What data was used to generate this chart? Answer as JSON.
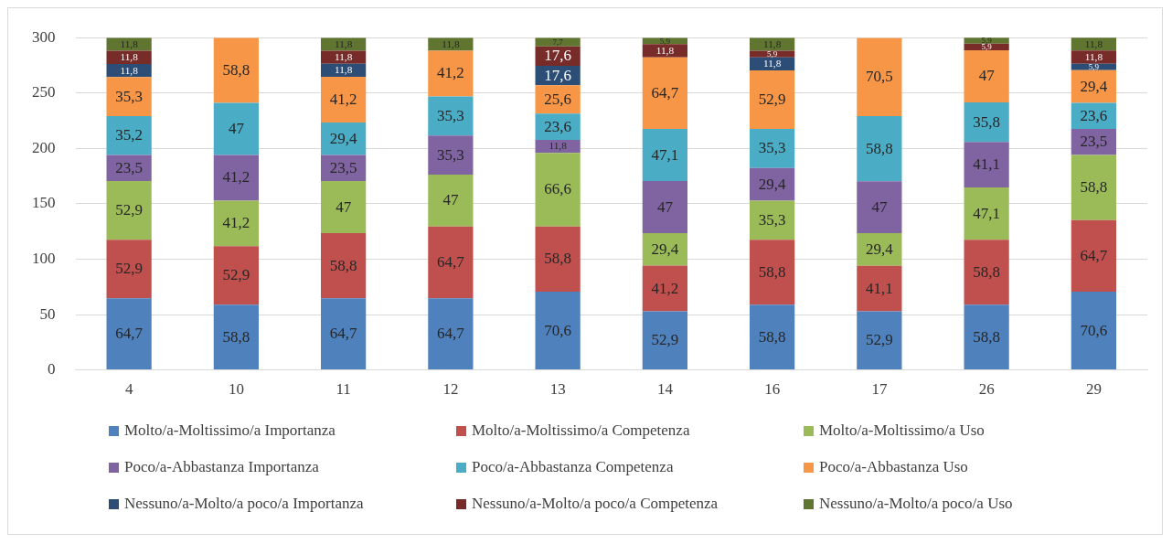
{
  "chart_data": {
    "type": "bar",
    "stacked": true,
    "categories": [
      "4",
      "10",
      "11",
      "12",
      "13",
      "14",
      "16",
      "17",
      "26",
      "29"
    ],
    "series": [
      {
        "name": "Molto/a-Moltissimo/a Importanza",
        "color": "#4f81bd",
        "values": [
          64.7,
          58.8,
          64.7,
          64.7,
          70.6,
          52.9,
          58.8,
          52.9,
          58.8,
          70.6
        ],
        "value_labels": [
          "64,7",
          "58,8",
          "64,7",
          "64,7",
          "70,6",
          "52,9",
          "58,8",
          "52,9",
          "58,8",
          "70,6"
        ]
      },
      {
        "name": "Molto/a-Moltissimo/a Competenza",
        "color": "#c0504d",
        "values": [
          52.9,
          52.9,
          58.8,
          64.7,
          58.8,
          41.2,
          58.8,
          41.1,
          58.8,
          64.7
        ],
        "value_labels": [
          "52,9",
          "52,9",
          "58,8",
          "64,7",
          "58,8",
          "41,2",
          "58,8",
          "41,1",
          "58,8",
          "64,7"
        ]
      },
      {
        "name": "Molto/a-Moltissimo/a Uso",
        "color": "#9bbb59",
        "values": [
          52.9,
          41.2,
          47,
          47,
          66.6,
          29.4,
          35.3,
          29.4,
          47.1,
          58.8
        ],
        "value_labels": [
          "52,9",
          "41,2",
          "47",
          "47",
          "66,6",
          "29,4",
          "35,3",
          "29,4",
          "47,1",
          "58,8"
        ]
      },
      {
        "name": "Poco/a-Abbastanza Importanza",
        "color": "#8064a2",
        "values": [
          23.5,
          41.2,
          23.5,
          35.3,
          11.8,
          47,
          29.4,
          47,
          41.1,
          23.5
        ],
        "value_labels": [
          "23,5",
          "41,2",
          "23,5",
          "35,3",
          "11,8",
          "47",
          "29,4",
          "47",
          "41,1",
          "23,5"
        ]
      },
      {
        "name": "Poco/a-Abbastanza Competenza",
        "color": "#4bacc6",
        "values": [
          35.2,
          47,
          29.4,
          35.3,
          23.6,
          47.1,
          35.3,
          58.8,
          35.8,
          23.6
        ],
        "value_labels": [
          "35,2",
          "47",
          "29,4",
          "35,3",
          "23,6",
          "47,1",
          "35,3",
          "58,8",
          "35,8",
          "23,6"
        ]
      },
      {
        "name": "Poco/a-Abbastanza Uso",
        "color": "#f79646",
        "values": [
          35.3,
          58.8,
          41.2,
          41.2,
          25.6,
          64.7,
          52.9,
          70.5,
          47,
          29.4
        ],
        "value_labels": [
          "35,3",
          "58,8",
          "41,2",
          "41,2",
          "25,6",
          "64,7",
          "52,9",
          "70,5",
          "47",
          "29,4"
        ]
      },
      {
        "name": "Nessuno/a-Molto/a poco/a Importanza",
        "color": "#2c4d75",
        "values": [
          11.8,
          null,
          11.8,
          null,
          17.6,
          null,
          11.8,
          null,
          null,
          5.9
        ],
        "value_labels": [
          "11,8",
          null,
          "11,8",
          null,
          "17,6",
          null,
          "11,8",
          null,
          null,
          "5,9"
        ]
      },
      {
        "name": "Nessuno/a-Molto/a poco/a Competenza",
        "color": "#772c2a",
        "values": [
          11.8,
          null,
          11.8,
          null,
          17.6,
          11.8,
          5.9,
          null,
          5.9,
          11.8
        ],
        "value_labels": [
          "11,8",
          null,
          "11,8",
          null,
          "17,6",
          "11,8",
          "5,9",
          null,
          "5,9",
          "11,8"
        ]
      },
      {
        "name": "Nessuno/a-Molto/a poco/a Uso",
        "color": "#5f7530",
        "values": [
          11.8,
          null,
          11.8,
          11.8,
          7.7,
          5.9,
          11.8,
          null,
          5.9,
          11.8
        ],
        "value_labels": [
          "11,8",
          null,
          "11,8",
          "11,8",
          "7,7",
          "5,9",
          "11,8",
          null,
          "5,9",
          "11,8"
        ]
      }
    ],
    "ylim": [
      0,
      300
    ],
    "yticks": [
      0,
      50,
      100,
      150,
      200,
      250,
      300
    ],
    "grid": "y",
    "legend": "bottom"
  }
}
